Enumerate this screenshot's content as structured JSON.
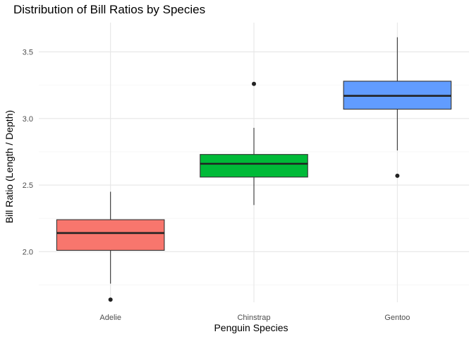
{
  "chart_data": {
    "type": "box",
    "title": "Distribution of Bill Ratios by Species",
    "xlabel": "Penguin Species",
    "ylabel": "Bill Ratio (Length / Depth)",
    "categories": [
      "Adelie",
      "Chinstrap",
      "Gentoo"
    ],
    "ylim": [
      1.62,
      3.72
    ],
    "yticks": [
      2.0,
      2.5,
      3.0,
      3.5
    ],
    "ytick_labels": [
      "2.0",
      "2.5",
      "3.0",
      "3.5"
    ],
    "grid": true,
    "legend": "none",
    "boxes": [
      {
        "category": "Adelie",
        "color": "#F8766D",
        "whisker_low": 1.76,
        "q1": 2.01,
        "median": 2.14,
        "q3": 2.24,
        "whisker_high": 2.45,
        "outliers": [
          1.64
        ]
      },
      {
        "category": "Chinstrap",
        "color": "#00BA38",
        "whisker_low": 2.35,
        "q1": 2.56,
        "median": 2.66,
        "q3": 2.73,
        "whisker_high": 2.93,
        "outliers": [
          3.26
        ]
      },
      {
        "category": "Gentoo",
        "color": "#619CFF",
        "whisker_low": 2.76,
        "q1": 3.07,
        "median": 3.17,
        "q3": 3.28,
        "whisker_high": 3.61,
        "outliers": [
          2.57
        ]
      }
    ]
  }
}
